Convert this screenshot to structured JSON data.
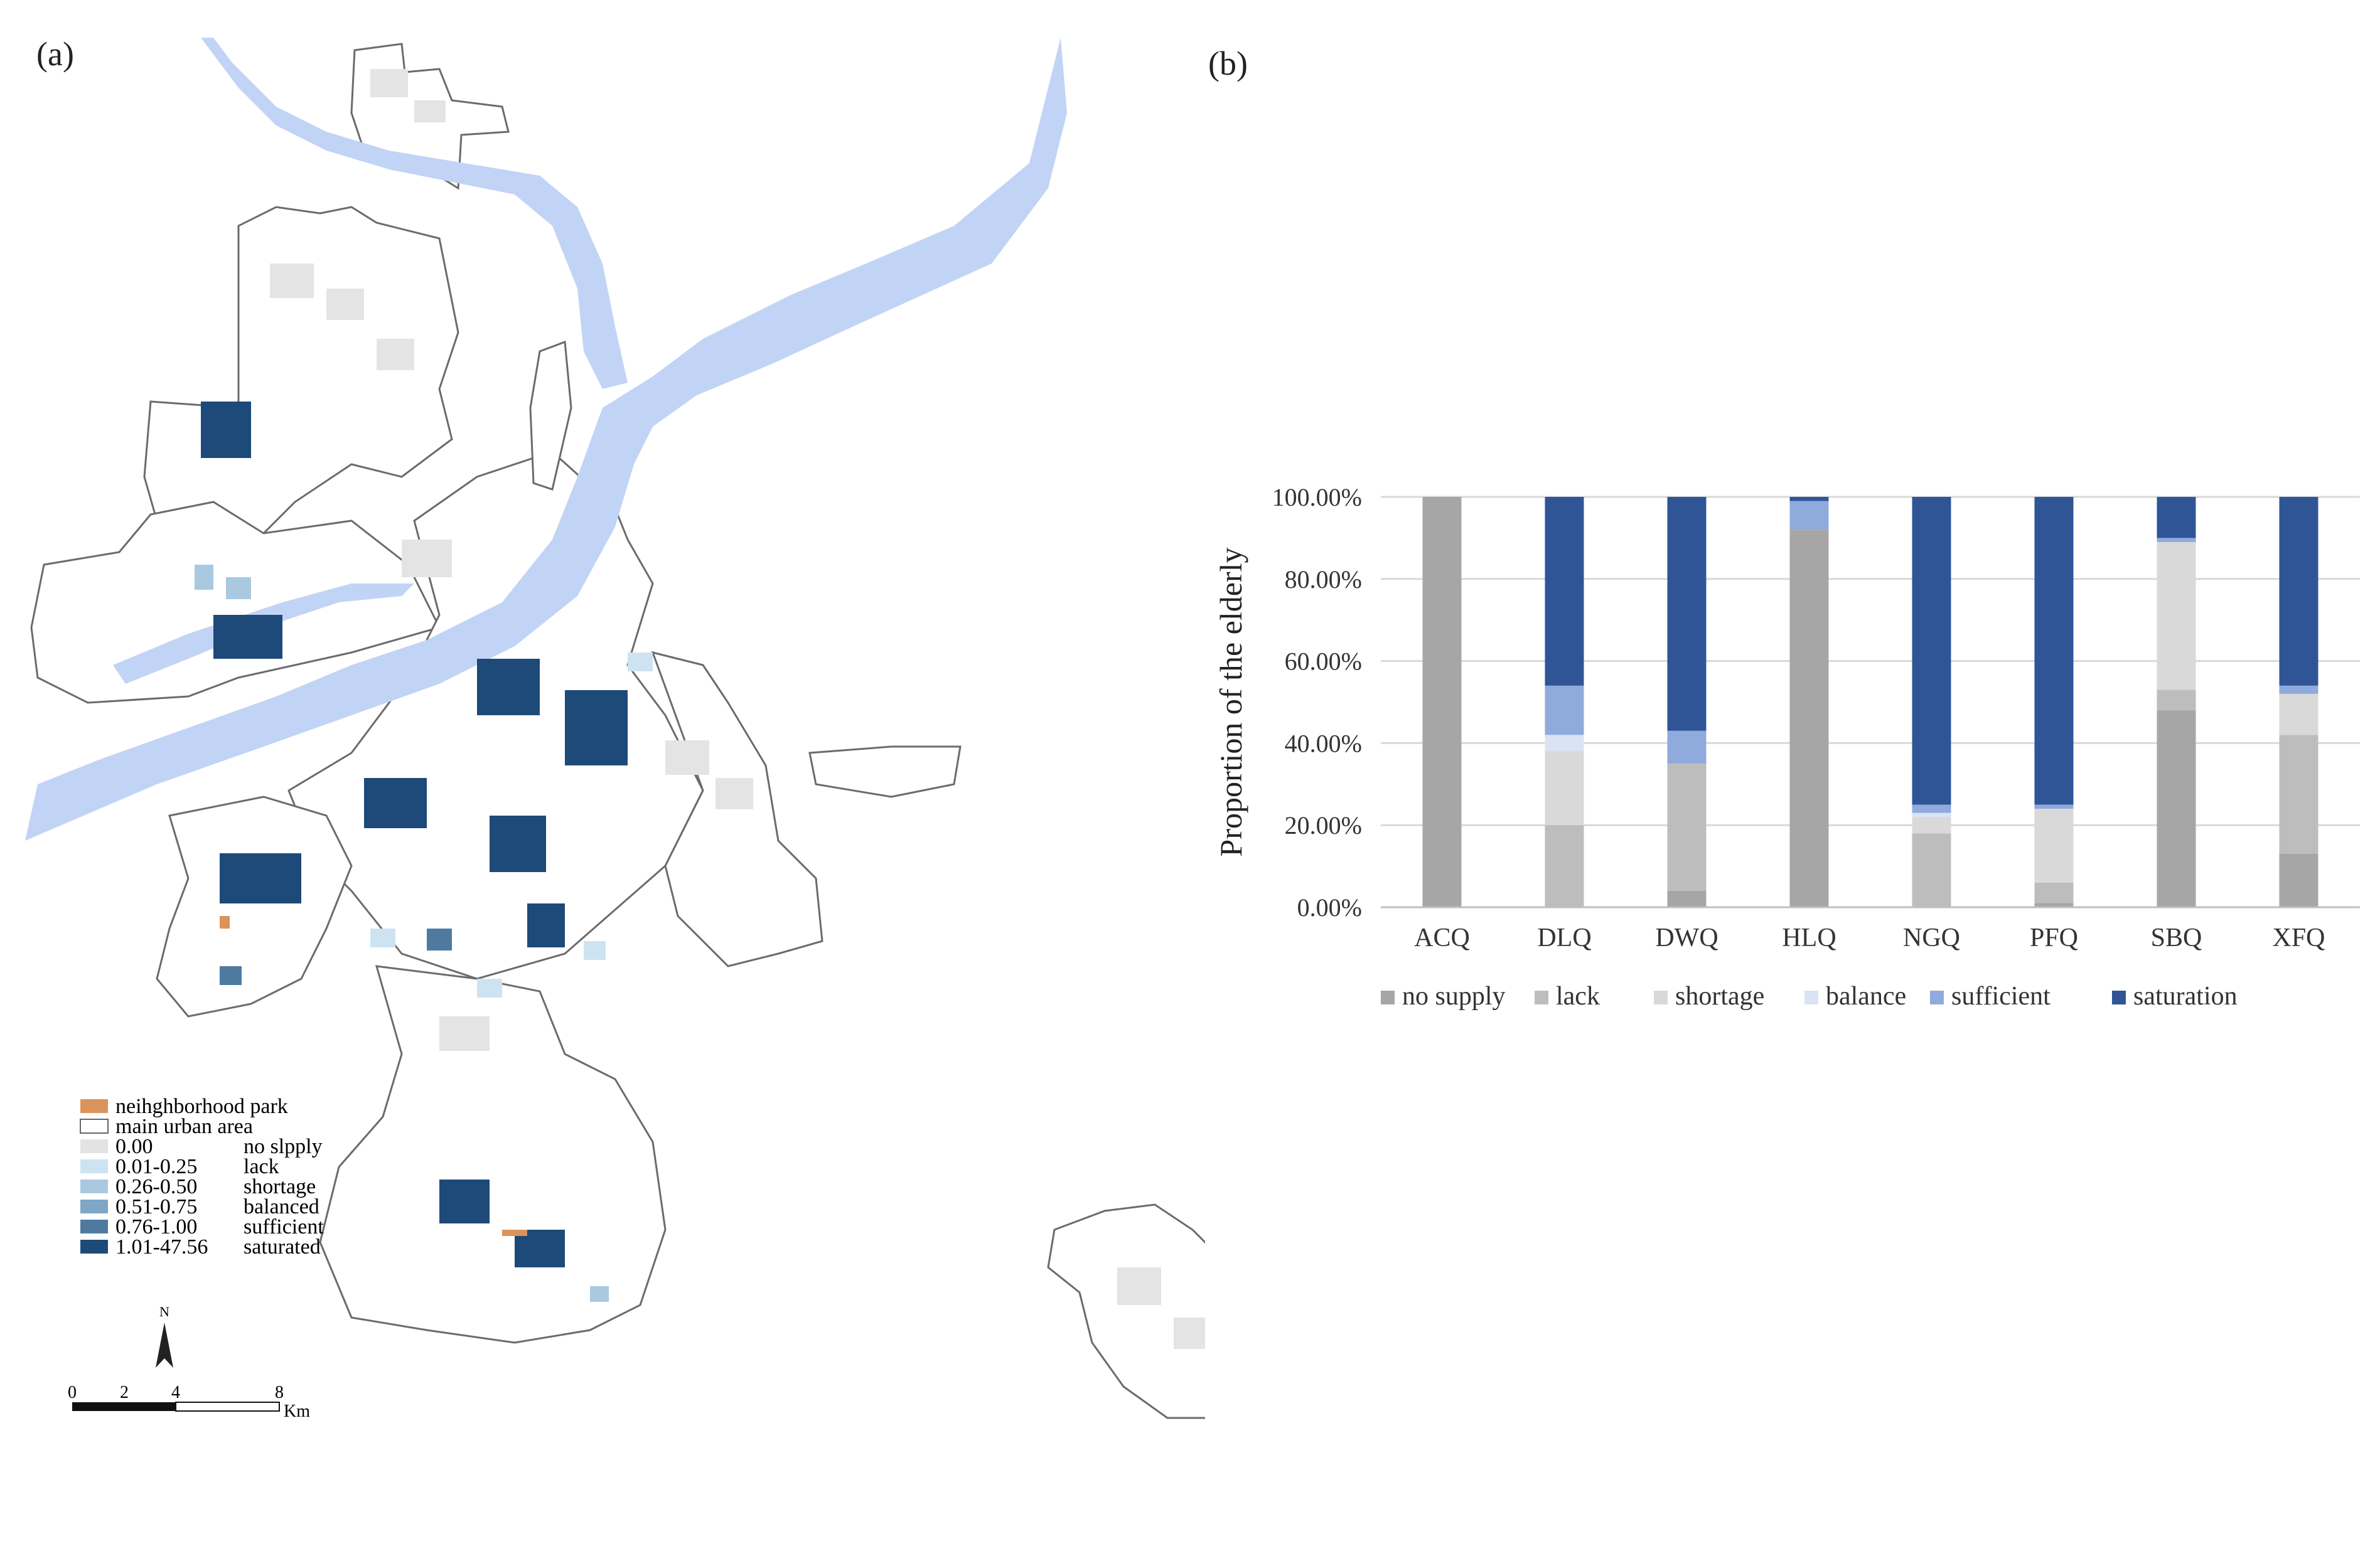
{
  "panel_a_label": "(a)",
  "panel_b_label": "(b)",
  "map": {
    "legend": [
      {
        "range": "",
        "label": "neihghborhood park",
        "color": "#d9935b"
      },
      {
        "range": "",
        "label": "main urban area",
        "color": "#ffffff"
      },
      {
        "range": "0.00",
        "label": "no slpply",
        "color": "#e3e3e3"
      },
      {
        "range": "0.01-0.25",
        "label": "lack",
        "color": "#cde3f2"
      },
      {
        "range": "0.26-0.50",
        "label": "shortage",
        "color": "#a9c9e1"
      },
      {
        "range": "0.51-0.75",
        "label": "balanced",
        "color": "#7ea6c6"
      },
      {
        "range": "0.76-1.00",
        "label": "sufficient",
        "color": "#4e7aa0"
      },
      {
        "range": "1.01-47.56",
        "label": "saturated",
        "color": "#1d4a78"
      }
    ],
    "north_label": "N",
    "scale_ticks": [
      "0",
      "2",
      "4",
      "8"
    ],
    "scale_unit": "Km",
    "colors": {
      "river": "#c2d4f5",
      "district_outline": "#6b6b6b",
      "block": "#e4e4e4"
    }
  },
  "chart_data": {
    "type": "bar",
    "stacked": true,
    "ylabel": "Proportion of the elderly",
    "xlabel": "",
    "ylim": [
      0,
      100
    ],
    "y_ticks": [
      "0.00%",
      "20.00%",
      "40.00%",
      "60.00%",
      "80.00%",
      "100.00%"
    ],
    "categories": [
      "ACQ",
      "DLQ",
      "DWQ",
      "HLQ",
      "NGQ",
      "PFQ",
      "SBQ",
      "XFQ"
    ],
    "series": [
      {
        "name": "no supply",
        "color": "#a6a6a6",
        "values": [
          100,
          0,
          4,
          92,
          0,
          1,
          48,
          13
        ]
      },
      {
        "name": "lack",
        "color": "#bdbdbd",
        "values": [
          0,
          20,
          31,
          0,
          18,
          5,
          5,
          29
        ]
      },
      {
        "name": "shortage",
        "color": "#d9d9d9",
        "values": [
          0,
          18,
          0,
          0,
          4,
          18,
          36,
          10
        ]
      },
      {
        "name": "balance",
        "color": "#dae3f3",
        "values": [
          0,
          4,
          0,
          0,
          1,
          0,
          0,
          0
        ]
      },
      {
        "name": "sufficient",
        "color": "#8faadc",
        "values": [
          0,
          12,
          8,
          7,
          2,
          1,
          1,
          2
        ]
      },
      {
        "name": "saturation",
        "color": "#2f5597",
        "values": [
          0,
          46,
          57,
          1,
          75,
          75,
          10,
          46
        ]
      }
    ],
    "legend_position": "bottom"
  }
}
